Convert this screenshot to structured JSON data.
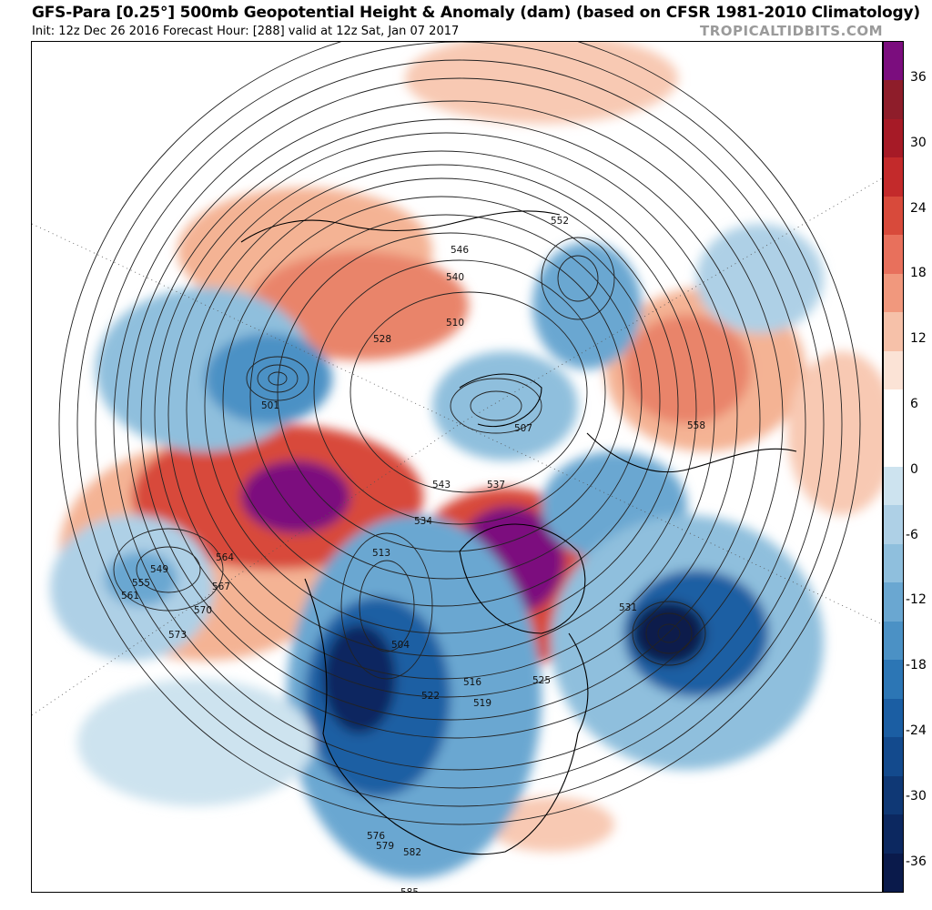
{
  "header": {
    "title": "GFS-Para [0.25°] 500mb Geopotential Height & Anomaly (dam) (based on CFSR 1981-2010 Climatology)",
    "subtitle": "Init: 12z Dec 26 2016   Forecast Hour: [288]   valid at 12z Sat, Jan 07 2017",
    "brand": "TROPICALTIDBITS.COM"
  },
  "colorbar": {
    "labels": [
      "36",
      "30",
      "24",
      "18",
      "12",
      "6",
      "0",
      "-6",
      "-12",
      "-18",
      "-24",
      "-30",
      "-36"
    ],
    "colors": [
      "#7b0d7e",
      "#8e1d2a",
      "#a61a26",
      "#c32a2b",
      "#d84a3b",
      "#e8705c",
      "#f1987d",
      "#f6c1a9",
      "#fbe3d6",
      "#ffffff",
      "#ffffff",
      "#cde3ef",
      "#aed0e6",
      "#8fbfdd",
      "#6aa7d1",
      "#4b91c5",
      "#2c76b5",
      "#1b5ea3",
      "#134a8d",
      "#0f3875",
      "#0c2860",
      "#0a1a4b"
    ]
  },
  "contour_labels": [
    "585",
    "582",
    "579",
    "576",
    "573",
    "570",
    "567",
    "564",
    "561",
    "558",
    "555",
    "552",
    "549",
    "546",
    "543",
    "540",
    "537",
    "534",
    "531",
    "528",
    "525",
    "522",
    "519",
    "516",
    "513",
    "510",
    "507",
    "504",
    "501"
  ],
  "map_labels": [
    {
      "t": "585"
    },
    {
      "t": "582"
    },
    {
      "t": "579"
    },
    {
      "t": "576"
    },
    {
      "t": "573"
    },
    {
      "t": "570"
    },
    {
      "t": "567"
    },
    {
      "t": "564"
    },
    {
      "t": "561"
    },
    {
      "t": "558"
    },
    {
      "t": "555"
    },
    {
      "t": "552"
    },
    {
      "t": "549"
    },
    {
      "t": "546"
    },
    {
      "t": "543"
    },
    {
      "t": "540"
    },
    {
      "t": "537"
    },
    {
      "t": "534"
    },
    {
      "t": "531"
    },
    {
      "t": "528"
    },
    {
      "t": "525"
    },
    {
      "t": "522"
    },
    {
      "t": "519"
    },
    {
      "t": "516"
    },
    {
      "t": "513"
    },
    {
      "t": "510"
    },
    {
      "t": "507"
    },
    {
      "t": "504"
    },
    {
      "t": "501"
    }
  ]
}
